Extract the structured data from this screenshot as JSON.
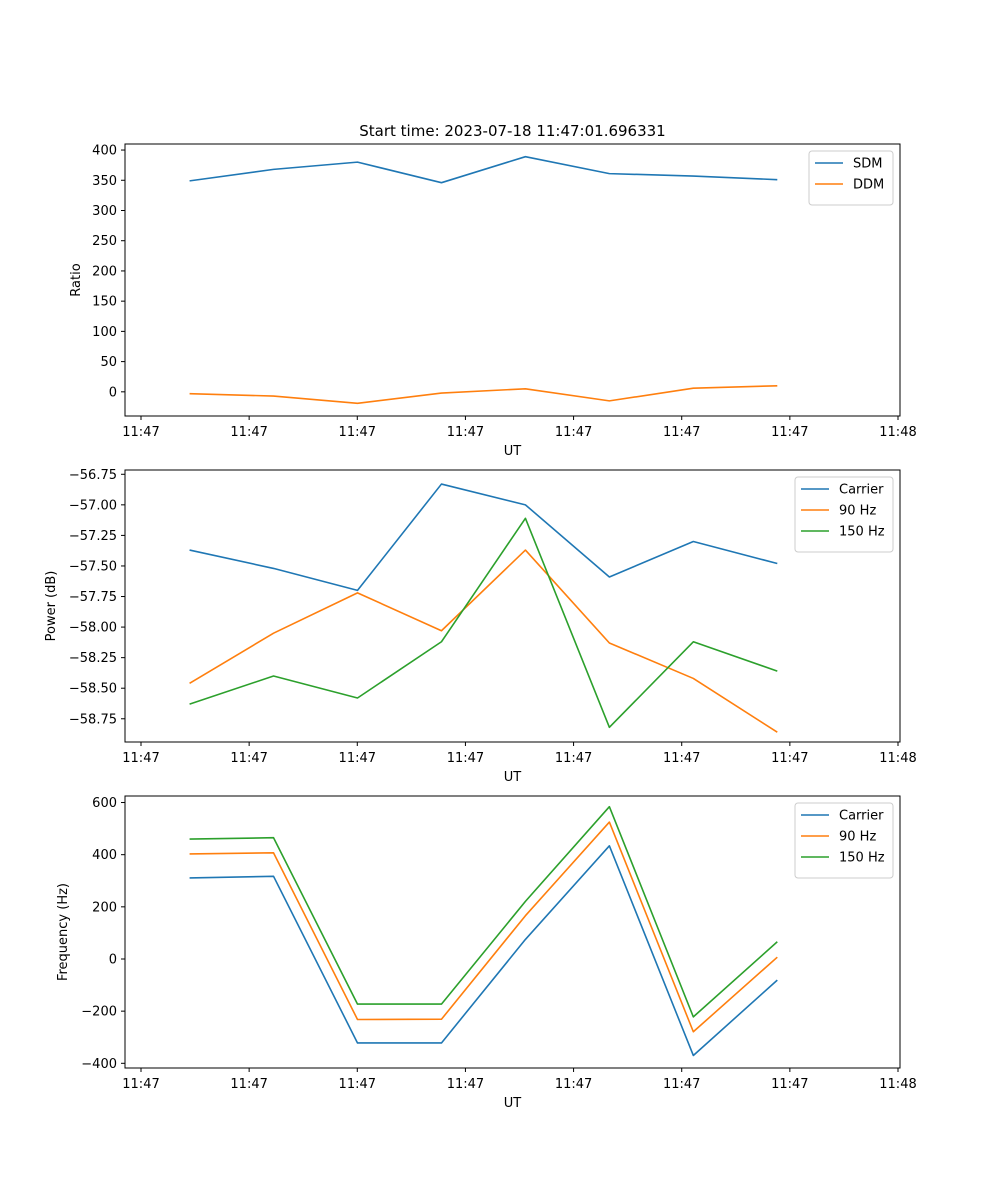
{
  "figure": {
    "title": "Start time: 2023-07-18 11:47:01.696331"
  },
  "chart_data": [
    {
      "type": "line",
      "title": "Start time: 2023-07-18 11:47:01.696331",
      "xlabel": "UT",
      "ylabel": "Ratio",
      "x_tick_labels": [
        "11:47",
        "11:47",
        "11:47",
        "11:47",
        "11:47",
        "11:47",
        "11:47",
        "11:48"
      ],
      "y_ticks": [
        0,
        50,
        100,
        150,
        200,
        250,
        300,
        350,
        400
      ],
      "ylim": [
        -40,
        410
      ],
      "x_points": [
        0.5,
        1.15,
        1.8,
        2.45,
        3.1,
        3.75,
        4.4,
        5.05
      ],
      "xlim": [
        0,
        6
      ],
      "legend_position": "upper right",
      "series": [
        {
          "name": "SDM",
          "color": "#1f77b4",
          "values": [
            349,
            368,
            380,
            346,
            389,
            361,
            357,
            351
          ]
        },
        {
          "name": "DDM",
          "color": "#ff7f0e",
          "values": [
            -3,
            -7,
            -19,
            -2,
            5,
            -15,
            6,
            10
          ]
        }
      ]
    },
    {
      "type": "line",
      "xlabel": "UT",
      "ylabel": "Power (dB)",
      "x_tick_labels": [
        "11:47",
        "11:47",
        "11:47",
        "11:47",
        "11:47",
        "11:47",
        "11:47",
        "11:48"
      ],
      "y_ticks": [
        -58.75,
        -58.5,
        -58.25,
        -58.0,
        -57.75,
        -57.5,
        -57.25,
        -57.0,
        -56.75
      ],
      "y_tick_labels": [
        "−58.75",
        "−58.50",
        "−58.25",
        "−58.00",
        "−57.75",
        "−57.50",
        "−57.25",
        "−57.00",
        "−56.75"
      ],
      "ylim": [
        -58.94,
        -56.715
      ],
      "x_points": [
        0.5,
        1.15,
        1.8,
        2.45,
        3.1,
        3.75,
        4.4,
        5.05
      ],
      "xlim": [
        0,
        6
      ],
      "legend_position": "upper right",
      "series": [
        {
          "name": "Carrier",
          "color": "#1f77b4",
          "values": [
            -57.37,
            -57.52,
            -57.7,
            -56.83,
            -57.0,
            -57.59,
            -57.3,
            -57.48
          ]
        },
        {
          "name": "90 Hz",
          "color": "#ff7f0e",
          "values": [
            -58.46,
            -58.05,
            -57.72,
            -58.03,
            -57.37,
            -58.13,
            -58.42,
            -58.86
          ]
        },
        {
          "name": "150 Hz",
          "color": "#2ca02c",
          "values": [
            -58.63,
            -58.4,
            -58.58,
            -58.12,
            -57.11,
            -58.82,
            -58.12,
            -58.36
          ]
        }
      ]
    },
    {
      "type": "line",
      "xlabel": "UT",
      "ylabel": "Frequency (Hz)",
      "x_tick_labels": [
        "11:47",
        "11:47",
        "11:47",
        "11:47",
        "11:47",
        "11:47",
        "11:47",
        "11:48"
      ],
      "y_ticks": [
        -400,
        -200,
        0,
        200,
        400,
        600
      ],
      "y_tick_labels": [
        "−400",
        "−200",
        "0",
        "200",
        "400",
        "600"
      ],
      "ylim": [
        -418,
        625
      ],
      "x_points": [
        0.5,
        1.15,
        1.8,
        2.45,
        3.1,
        3.75,
        4.4,
        5.05
      ],
      "xlim": [
        0,
        6
      ],
      "legend_position": "upper right",
      "series": [
        {
          "name": "Carrier",
          "color": "#1f77b4",
          "values": [
            311,
            317,
            -322,
            -322,
            75,
            434,
            -370,
            -81
          ]
        },
        {
          "name": "90 Hz",
          "color": "#ff7f0e",
          "values": [
            403,
            407,
            -232,
            -231,
            166,
            525,
            -279,
            7
          ]
        },
        {
          "name": "150 Hz",
          "color": "#2ca02c",
          "values": [
            460,
            465,
            -173,
            -173,
            221,
            584,
            -222,
            66
          ]
        }
      ]
    }
  ]
}
